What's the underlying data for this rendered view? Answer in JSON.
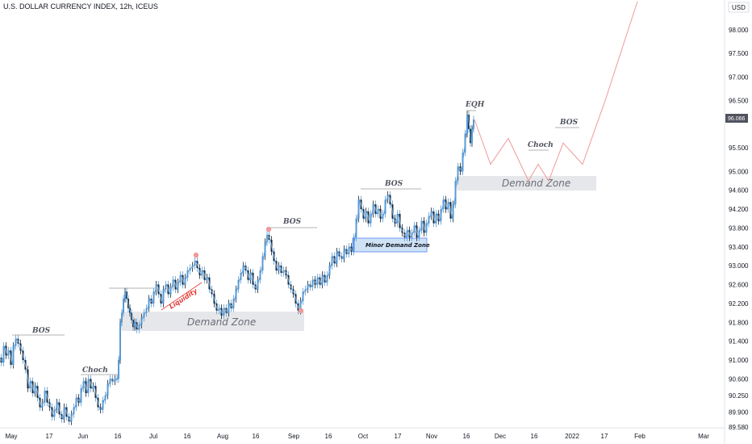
{
  "header": {
    "title": "U.S. DOLLAR CURRENCY INDEX, 12h, ICEUS"
  },
  "currency_label": "USD",
  "current_price": "96.066",
  "colors": {
    "candle": "#5b9bd5",
    "candle_dark": "#1e2329",
    "projection": "#ef9a9a",
    "demand_zone": "#e6e7ea",
    "minor_zone": "#cfe2f5",
    "minor_zone_border": "#2962ff",
    "level_line": "#9a9a9a",
    "liquidity": "#e53935",
    "marker": "#ef9a9a",
    "price_tag_bg": "#50535e"
  },
  "annotations": {
    "bos_1": "BOS",
    "bos_2": "BOS",
    "bos_3": "BOS",
    "bos_4": "BOS",
    "choch_1": "Choch",
    "choch_2": "Choch",
    "eqh": "EQH",
    "liquidity": "Liquidity",
    "demand_zone_1": "Demand Zone",
    "demand_zone_2": "Demand Zone",
    "minor_demand_zone": "Minor Demand Zone"
  },
  "chart_data": {
    "type": "line",
    "y_axis": {
      "ticks": [
        "98.000",
        "97.500",
        "97.000",
        "96.500",
        "95.500",
        "95.000",
        "94.600",
        "94.200",
        "93.800",
        "93.400",
        "93.000",
        "92.600",
        "92.200",
        "91.800",
        "91.400",
        "91.000",
        "90.600",
        "90.250",
        "89.900",
        "89.580"
      ],
      "ylim": [
        89.5,
        98.6
      ]
    },
    "x_axis": {
      "ticks": [
        "May",
        "17",
        "Jun",
        "16",
        "Jul",
        "16",
        "Aug",
        "16",
        "Sep",
        "16",
        "Oct",
        "17",
        "Nov",
        "16",
        "Dec",
        "16",
        "2022",
        "17",
        "Feb",
        "Mar"
      ]
    },
    "series": [
      {
        "values": [
          [
            0,
            91.05
          ],
          [
            3,
            90.95
          ],
          [
            6,
            91.3
          ],
          [
            9,
            91.1
          ],
          [
            12,
            91.2
          ],
          [
            15,
            90.9
          ],
          [
            18,
            91.3
          ],
          [
            21,
            91.45
          ],
          [
            24,
            91.35
          ],
          [
            27,
            91.2
          ],
          [
            30,
            91.0
          ],
          [
            33,
            90.8
          ],
          [
            36,
            90.4
          ],
          [
            39,
            90.55
          ],
          [
            42,
            90.3
          ],
          [
            45,
            90.45
          ],
          [
            48,
            90.2
          ],
          [
            51,
            90.0
          ],
          [
            54,
            90.1
          ],
          [
            57,
            90.35
          ],
          [
            60,
            90.1
          ],
          [
            63,
            90.0
          ],
          [
            66,
            89.8
          ],
          [
            69,
            89.95
          ],
          [
            72,
            90.1
          ],
          [
            75,
            89.85
          ],
          [
            78,
            89.75
          ],
          [
            81,
            90.0
          ],
          [
            84,
            89.8
          ],
          [
            87,
            89.7
          ],
          [
            90,
            89.85
          ],
          [
            93,
            90.0
          ],
          [
            96,
            90.2
          ],
          [
            99,
            90.1
          ],
          [
            102,
            90.4
          ],
          [
            105,
            90.55
          ],
          [
            108,
            90.3
          ],
          [
            111,
            90.6
          ],
          [
            114,
            90.4
          ],
          [
            117,
            90.45
          ],
          [
            120,
            90.2
          ],
          [
            123,
            90.0
          ],
          [
            126,
            89.95
          ],
          [
            129,
            90.15
          ],
          [
            132,
            90.25
          ],
          [
            135,
            90.5
          ],
          [
            138,
            90.6
          ],
          [
            141,
            90.55
          ],
          [
            144,
            90.6
          ],
          [
            146,
            90.6
          ],
          [
            148,
            91.0
          ],
          [
            150,
            91.8
          ],
          [
            152,
            92.0
          ],
          [
            154,
            92.3
          ],
          [
            156,
            92.45
          ],
          [
            158,
            92.3
          ],
          [
            160,
            92.1
          ],
          [
            162,
            92.0
          ],
          [
            164,
            91.85
          ],
          [
            166,
            91.7
          ],
          [
            168,
            91.8
          ],
          [
            171,
            91.65
          ],
          [
            174,
            91.75
          ],
          [
            177,
            91.9
          ],
          [
            180,
            92.0
          ],
          [
            183,
            92.1
          ],
          [
            186,
            92.3
          ],
          [
            189,
            92.2
          ],
          [
            192,
            92.45
          ],
          [
            195,
            92.6
          ],
          [
            198,
            92.4
          ],
          [
            201,
            92.2
          ],
          [
            204,
            92.5
          ],
          [
            207,
            92.6
          ],
          [
            210,
            92.4
          ],
          [
            213,
            92.55
          ],
          [
            216,
            92.7
          ],
          [
            219,
            92.5
          ],
          [
            222,
            92.65
          ],
          [
            225,
            92.8
          ],
          [
            228,
            92.6
          ],
          [
            231,
            92.75
          ],
          [
            234,
            92.9
          ],
          [
            237,
            92.95
          ],
          [
            240,
            93.0
          ],
          [
            243,
            93.1
          ],
          [
            246,
            92.95
          ],
          [
            249,
            92.8
          ],
          [
            252,
            92.9
          ],
          [
            255,
            92.7
          ],
          [
            258,
            92.75
          ],
          [
            261,
            92.5
          ],
          [
            264,
            92.4
          ],
          [
            267,
            92.2
          ],
          [
            270,
            92.05
          ],
          [
            273,
            92.1
          ],
          [
            276,
            91.95
          ],
          [
            279,
            92.1
          ],
          [
            282,
            92.0
          ],
          [
            285,
            92.2
          ],
          [
            288,
            92.1
          ],
          [
            291,
            92.3
          ],
          [
            294,
            92.5
          ],
          [
            297,
            92.7
          ],
          [
            300,
            92.85
          ],
          [
            303,
            93.0
          ],
          [
            306,
            92.9
          ],
          [
            309,
            92.7
          ],
          [
            312,
            92.85
          ],
          [
            315,
            92.6
          ],
          [
            318,
            92.5
          ],
          [
            321,
            92.7
          ],
          [
            324,
            92.9
          ],
          [
            327,
            93.2
          ],
          [
            330,
            93.5
          ],
          [
            332,
            93.65
          ],
          [
            335,
            93.55
          ],
          [
            338,
            93.3
          ],
          [
            341,
            93.1
          ],
          [
            344,
            92.9
          ],
          [
            347,
            93.0
          ],
          [
            350,
            92.85
          ],
          [
            353,
            92.9
          ],
          [
            356,
            92.8
          ],
          [
            359,
            92.6
          ],
          [
            362,
            92.5
          ],
          [
            365,
            92.4
          ],
          [
            368,
            92.2
          ],
          [
            371,
            92.05
          ],
          [
            374,
            92.25
          ],
          [
            377,
            92.45
          ],
          [
            380,
            92.5
          ],
          [
            383,
            92.6
          ],
          [
            386,
            92.55
          ],
          [
            389,
            92.7
          ],
          [
            392,
            92.6
          ],
          [
            395,
            92.75
          ],
          [
            398,
            92.6
          ],
          [
            401,
            92.8
          ],
          [
            404,
            92.65
          ],
          [
            407,
            92.8
          ],
          [
            410,
            93.0
          ],
          [
            413,
            93.2
          ],
          [
            416,
            93.05
          ],
          [
            419,
            93.3
          ],
          [
            422,
            93.2
          ],
          [
            425,
            93.15
          ],
          [
            428,
            93.35
          ],
          [
            431,
            93.25
          ],
          [
            434,
            93.4
          ],
          [
            437,
            93.3
          ],
          [
            440,
            93.6
          ],
          [
            443,
            94.0
          ],
          [
            446,
            94.4
          ],
          [
            449,
            94.2
          ],
          [
            452,
            94.0
          ],
          [
            455,
            94.15
          ],
          [
            458,
            93.9
          ],
          [
            461,
            94.1
          ],
          [
            464,
            94.3
          ],
          [
            467,
            94.1
          ],
          [
            470,
            94.2
          ],
          [
            473,
            94.0
          ],
          [
            476,
            94.1
          ],
          [
            479,
            94.4
          ],
          [
            482,
            94.5
          ],
          [
            485,
            94.3
          ],
          [
            488,
            94.0
          ],
          [
            491,
            93.9
          ],
          [
            494,
            94.1
          ],
          [
            497,
            93.8
          ],
          [
            500,
            93.7
          ],
          [
            503,
            93.6
          ],
          [
            506,
            93.75
          ],
          [
            509,
            93.6
          ],
          [
            512,
            93.7
          ],
          [
            515,
            93.85
          ],
          [
            518,
            93.6
          ],
          [
            521,
            93.75
          ],
          [
            524,
            93.95
          ],
          [
            527,
            93.7
          ],
          [
            530,
            93.9
          ],
          [
            533,
            94.05
          ],
          [
            536,
            94.15
          ],
          [
            539,
            93.9
          ],
          [
            542,
            94.1
          ],
          [
            545,
            93.95
          ],
          [
            548,
            94.2
          ],
          [
            551,
            94.4
          ],
          [
            554,
            94.2
          ],
          [
            557,
            94.35
          ],
          [
            560,
            94.0
          ],
          [
            563,
            94.3
          ],
          [
            566,
            94.8
          ],
          [
            569,
            95.1
          ],
          [
            572,
            95.0
          ],
          [
            575,
            95.4
          ],
          [
            578,
            95.8
          ],
          [
            580,
            96.2
          ],
          [
            582,
            95.9
          ],
          [
            584,
            95.6
          ],
          [
            586,
            95.9
          ],
          [
            588,
            96.1
          ]
        ]
      },
      {
        "values": [
          [
            588,
            96.1
          ],
          [
            608,
            95.15
          ],
          [
            630,
            95.7
          ],
          [
            655,
            94.8
          ],
          [
            667,
            95.15
          ],
          [
            680,
            94.8
          ],
          [
            698,
            95.6
          ],
          [
            722,
            95.15
          ],
          [
            750,
            96.5
          ],
          [
            790,
            98.6
          ]
        ]
      }
    ]
  }
}
